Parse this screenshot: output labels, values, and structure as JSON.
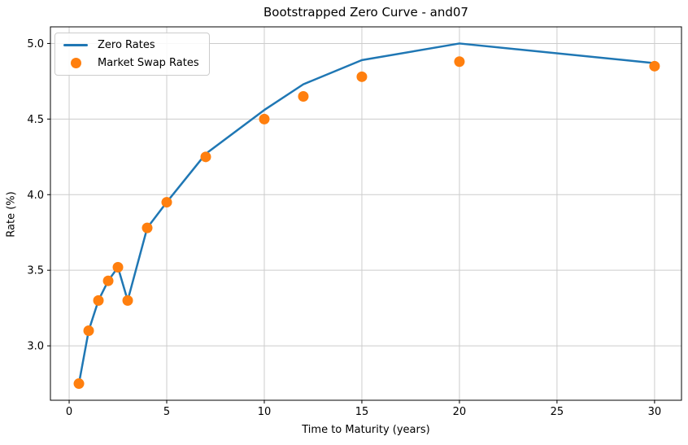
{
  "chart_data": {
    "type": "line",
    "title": "Bootstrapped Zero Curve - and07",
    "xlabel": "Time to Maturity (years)",
    "ylabel": "Rate (%)",
    "grid": true,
    "legend_position": "upper left",
    "xlim": [
      -0.96,
      31.38
    ],
    "ylim": [
      2.64,
      5.11
    ],
    "x_ticks": [
      0,
      5,
      10,
      15,
      20,
      25,
      30
    ],
    "x_tick_labels": [
      "0",
      "5",
      "10",
      "15",
      "20",
      "25",
      "30"
    ],
    "y_ticks": [
      3.0,
      3.5,
      4.0,
      4.5,
      5.0
    ],
    "y_tick_labels": [
      "3.0",
      "3.5",
      "4.0",
      "4.5",
      "5.0"
    ],
    "x": [
      0.5,
      1,
      1.5,
      2,
      2.5,
      3,
      4,
      5,
      7,
      10,
      12,
      15,
      20,
      30
    ],
    "series": [
      {
        "name": "Zero Rates",
        "type": "line",
        "color": "#1f77b4",
        "line_width": 2.5,
        "values": [
          2.75,
          3.1,
          3.3,
          3.43,
          3.52,
          3.3,
          3.78,
          3.95,
          4.27,
          4.56,
          4.73,
          4.89,
          5.0,
          4.87
        ]
      },
      {
        "name": "Market Swap Rates",
        "type": "scatter",
        "color": "#ff7f0e",
        "marker": "circle",
        "marker_radius": 6.5,
        "values": [
          2.75,
          3.1,
          3.3,
          3.43,
          3.52,
          3.3,
          3.78,
          3.95,
          4.25,
          4.5,
          4.65,
          4.78,
          4.88,
          4.85
        ]
      }
    ]
  },
  "style": {
    "background": "#ffffff",
    "grid_color": "#cccccc",
    "spine_color": "#000000",
    "tick_color": "#000000",
    "text_color": "#000000",
    "legend_border": "#cccccc"
  }
}
